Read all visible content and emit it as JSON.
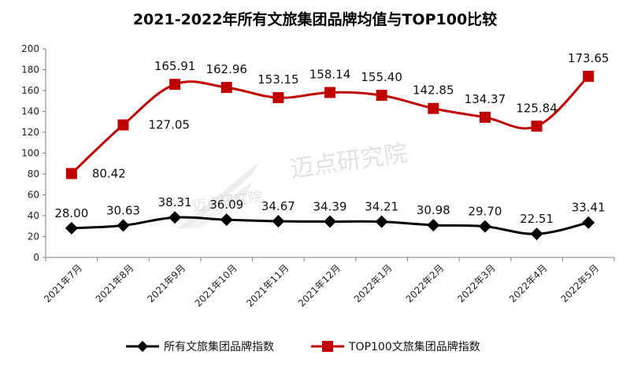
{
  "chart_data": {
    "type": "line",
    "title": "2021-2022年所有文旅集团品牌均值与TOP100比较",
    "xlabel": "",
    "ylabel": "",
    "ylim": [
      0,
      200
    ],
    "yticks": [
      0,
      20,
      40,
      60,
      80,
      100,
      120,
      140,
      160,
      180,
      200
    ],
    "grid": false,
    "legend_position": "bottom",
    "categories": [
      "2021年7月",
      "2021年8月",
      "2021年9月",
      "2021年10月",
      "2021年11月",
      "2021年12月",
      "2022年1月",
      "2022年2月",
      "2022年3月",
      "2022年4月",
      "2022年5月"
    ],
    "series": [
      {
        "name": "所有文旅集团品牌指数",
        "color": "#000000",
        "marker": "diamond",
        "values": [
          28.0,
          30.63,
          38.31,
          36.09,
          34.67,
          34.39,
          34.21,
          30.98,
          29.7,
          22.51,
          33.41
        ],
        "labels": [
          "28.00",
          "30.63",
          "38.31",
          "36.09",
          "34.67",
          "34.39",
          "34.21",
          "30.98",
          "29.70",
          "22.51",
          "33.41"
        ]
      },
      {
        "name": "TOP100文旅集团品牌指数",
        "color": "#c00000",
        "marker": "square",
        "values": [
          80.42,
          127.05,
          165.91,
          162.96,
          153.15,
          158.14,
          155.4,
          142.85,
          134.37,
          125.84,
          173.65
        ],
        "labels": [
          "80.42",
          "127.05",
          "165.91",
          "162.96",
          "153.15",
          "158.14",
          "155.40",
          "142.85",
          "134.37",
          "125.84",
          "173.65"
        ]
      }
    ]
  },
  "watermark": {
    "text_main": "迈点研究院",
    "text_logo": "迈点研究院"
  }
}
